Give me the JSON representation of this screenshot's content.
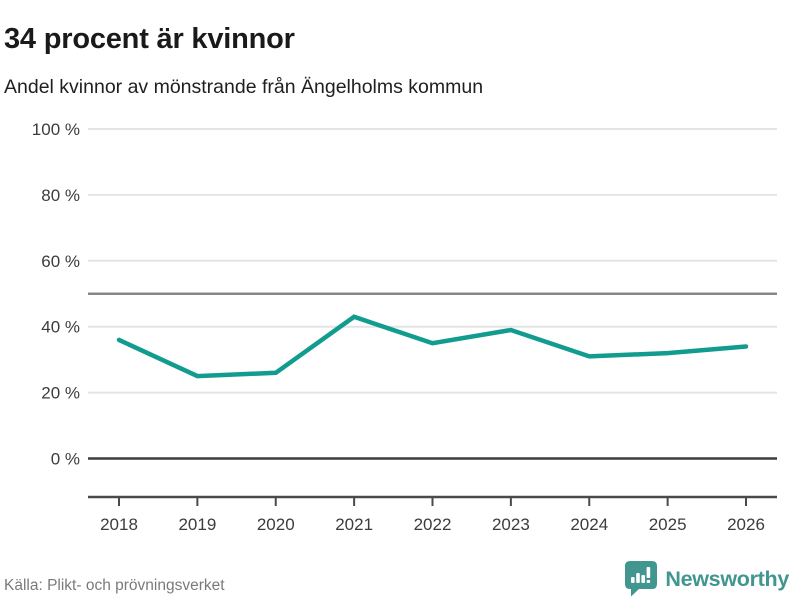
{
  "chart_data": {
    "type": "line",
    "title": "34 procent är kvinnor",
    "subtitle": "Andel kvinnor av mönstrande från Ängelholms kommun",
    "x": [
      "2018",
      "2019",
      "2020",
      "2021",
      "2022",
      "2023",
      "2024",
      "2025",
      "2026"
    ],
    "series": [
      {
        "name": "Andel kvinnor av mönstrande",
        "values": [
          36,
          25,
          26,
          43,
          35,
          39,
          31,
          32,
          34
        ]
      }
    ],
    "xlabel": "",
    "ylabel": "",
    "unit": "%",
    "ylim": [
      0,
      100
    ],
    "y_ticks": [
      0,
      20,
      40,
      60,
      80,
      100
    ],
    "y_tick_labels": [
      "0 %",
      "20 %",
      "40 %",
      "60 %",
      "80 %",
      "100 %"
    ],
    "reference_line": 50,
    "grid": true,
    "legend_position": "none",
    "line_color": "#129c8f"
  },
  "footer": {
    "source": "Källa: Plikt- och prövningsverket",
    "logo": {
      "text": "Newsworthy",
      "color": "#41968f",
      "icon": "bar-chart-speech-bubble"
    }
  },
  "colors": {
    "title_text": "#1a1a1a",
    "axis_text": "#3c3c3c",
    "grid_light": "#e4e4e4",
    "grid_dark": "#878787",
    "zero_line": "#3d3d3d",
    "axis_line": "#4a4a4a",
    "source_text": "#7a7a7a"
  }
}
